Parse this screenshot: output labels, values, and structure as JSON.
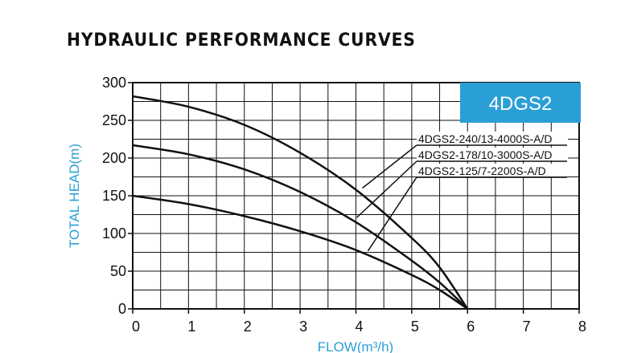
{
  "page_title": "HYDRAULIC PERFORMANCE CURVES",
  "colors": {
    "badge": "#2a9fd6",
    "axis_label": "#2a9fd6",
    "curve": "#111111",
    "grid": "#111111"
  },
  "chart_data": {
    "type": "line",
    "title": "",
    "badge": "4DGS2",
    "xlabel": "FLOW(m³/h)",
    "ylabel": "TOTAL HEAD(m)",
    "xlim": [
      0,
      8
    ],
    "ylim": [
      0,
      300
    ],
    "xticks": [
      0,
      1,
      2,
      3,
      4,
      5,
      6,
      7,
      8
    ],
    "yticks": [
      0,
      50,
      100,
      150,
      200,
      250,
      300
    ],
    "grid": true,
    "legend_position": "top-right",
    "series": [
      {
        "name": "4DGS2-240/13-4000S-A/D",
        "x": [
          0,
          1,
          2,
          3,
          4,
          5,
          5.5,
          6
        ],
        "y": [
          282,
          268,
          244,
          207,
          158,
          94,
          55,
          0
        ]
      },
      {
        "name": "4DGS2-178/10-3000S-A/D",
        "x": [
          0,
          1,
          2,
          3,
          4,
          5,
          5.5,
          6
        ],
        "y": [
          217,
          205,
          185,
          155,
          115,
          64,
          35,
          0
        ]
      },
      {
        "name": "4DGS2-125/7-2200S-A/D",
        "x": [
          0,
          1,
          2,
          3,
          4,
          5,
          5.5,
          6
        ],
        "y": [
          150,
          139,
          123,
          103,
          78,
          45,
          25,
          0
        ]
      }
    ]
  }
}
